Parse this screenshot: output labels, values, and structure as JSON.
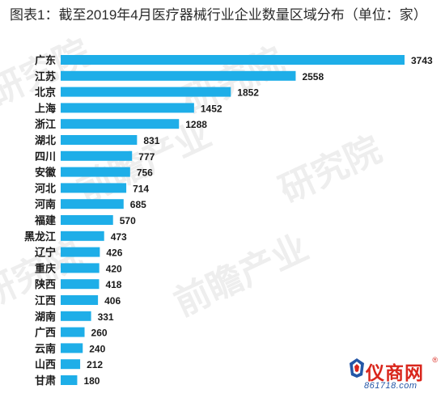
{
  "chart_data": {
    "type": "bar",
    "orientation": "horizontal",
    "title": "图表1：截至2019年4月医疗器械行业企业数量区域分布（单位：家）",
    "categories": [
      "广东",
      "江苏",
      "北京",
      "上海",
      "浙江",
      "湖北",
      "四川",
      "安徽",
      "河北",
      "河南",
      "福建",
      "黑龙江",
      "辽宁",
      "重庆",
      "陕西",
      "江西",
      "湖南",
      "广西",
      "云南",
      "山西",
      "甘肃"
    ],
    "values": [
      3743,
      2558,
      1852,
      1452,
      1288,
      831,
      777,
      756,
      714,
      685,
      570,
      473,
      426,
      420,
      418,
      406,
      331,
      260,
      240,
      212,
      180
    ],
    "xlim": [
      0,
      3743
    ],
    "bar_color": "#1eaee8",
    "grid": false,
    "legend": "none",
    "xlabel": "",
    "ylabel": ""
  },
  "logo": {
    "name": "仪商网",
    "registered": "®",
    "url": "861718.com",
    "color_primary": "#d9261c",
    "color_secondary": "#2457a7"
  }
}
